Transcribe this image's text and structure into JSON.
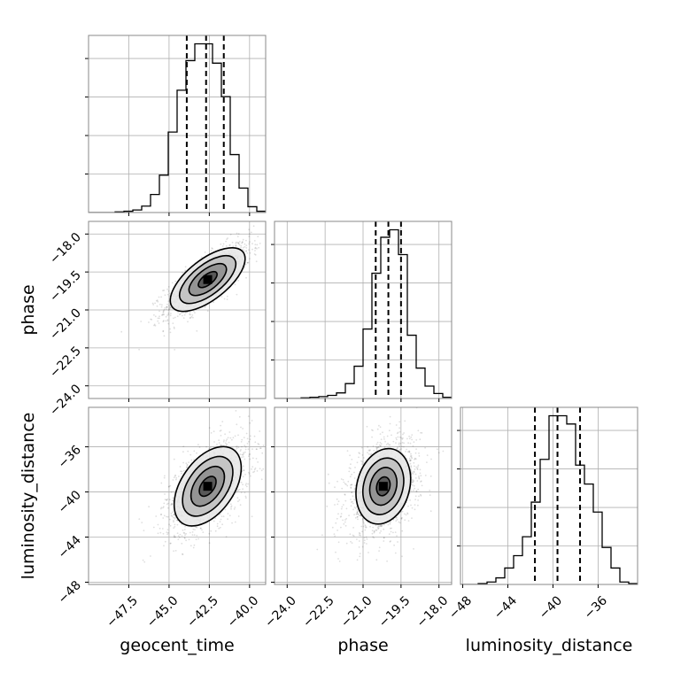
{
  "chart_data": {
    "type": "corner",
    "parameters": [
      "geocent_time",
      "phase",
      "luminosity_distance"
    ],
    "axis_labels": [
      "geocent_time",
      "phase",
      "luminosity_distance"
    ],
    "ranges": {
      "geocent_time": [
        -50.0,
        -39.0
      ],
      "phase": [
        -24.5,
        -17.5
      ],
      "luminosity_distance": [
        -48.2,
        -32.5
      ]
    },
    "ticks": {
      "geocent_time": [
        {
          "v": -47.5,
          "t": "−47.5"
        },
        {
          "v": -45.0,
          "t": "−45.0"
        },
        {
          "v": -42.5,
          "t": "−42.5"
        },
        {
          "v": -40.0,
          "t": "−40.0"
        }
      ],
      "phase": [
        {
          "v": -24.0,
          "t": "−24.0"
        },
        {
          "v": -22.5,
          "t": "−22.5"
        },
        {
          "v": -21.0,
          "t": "−21.0"
        },
        {
          "v": -19.5,
          "t": "−19.5"
        },
        {
          "v": -18.0,
          "t": "−18.0"
        }
      ],
      "luminosity_distance": [
        {
          "v": -48,
          "t": "−48"
        },
        {
          "v": -44,
          "t": "−44"
        },
        {
          "v": -40,
          "t": "−40"
        },
        {
          "v": -36,
          "t": "−36"
        }
      ]
    },
    "quantiles": {
      "geocent_time": [
        -43.9,
        -42.7,
        -41.6
      ],
      "phase": [
        -20.5,
        -20.0,
        -19.5
      ],
      "luminosity_distance": [
        -41.6,
        -39.6,
        -37.6
      ]
    },
    "histograms": {
      "geocent_time": {
        "bin_edges": [
          -50.0,
          -49.45,
          -48.9,
          -48.35,
          -47.8,
          -47.25,
          -46.7,
          -46.15,
          -45.6,
          -45.05,
          -44.5,
          -43.95,
          -43.4,
          -42.85,
          -42.3,
          -41.75,
          -41.2,
          -40.65,
          -40.1,
          -39.55,
          -39.0
        ],
        "counts": [
          0,
          0,
          0,
          1,
          2,
          4,
          10,
          28,
          58,
          125,
          190,
          236,
          262,
          262,
          232,
          180,
          90,
          38,
          9,
          2
        ]
      },
      "phase": {
        "bin_edges": [
          -24.5,
          -24.15,
          -23.8,
          -23.45,
          -23.1,
          -22.75,
          -22.4,
          -22.05,
          -21.7,
          -21.35,
          -21.0,
          -20.65,
          -20.3,
          -19.95,
          -19.6,
          -19.25,
          -18.9,
          -18.55,
          -18.2,
          -17.85,
          -17.5
        ],
        "counts": [
          0,
          0,
          0,
          1,
          2,
          3,
          5,
          9,
          24,
          52,
          112,
          202,
          260,
          272,
          232,
          102,
          49,
          20,
          8,
          2
        ]
      },
      "luminosity_distance": {
        "bin_edges": [
          -48.2,
          -47.415,
          -46.63,
          -45.845,
          -45.06,
          -44.275,
          -43.49,
          -42.705,
          -41.92,
          -41.135,
          -40.35,
          -39.565,
          -38.78,
          -37.995,
          -37.21,
          -36.425,
          -35.64,
          -34.855,
          -34.07,
          -33.285,
          -32.5
        ],
        "counts": [
          0,
          0,
          1,
          3,
          8,
          20,
          35,
          58,
          100,
          152,
          205,
          205,
          195,
          145,
          122,
          88,
          45,
          20,
          3,
          1
        ]
      }
    },
    "joint_centers": {
      "phase_vs_geocent_time": {
        "x": -42.6,
        "y": -19.8
      },
      "luminosity_distance_vs_geocent_time": {
        "x": -42.6,
        "y": -39.5
      },
      "luminosity_distance_vs_phase": {
        "x": -20.2,
        "y": -39.5
      }
    },
    "grid": true,
    "levels": [
      0.5,
      1.0,
      1.5,
      2.0
    ]
  }
}
